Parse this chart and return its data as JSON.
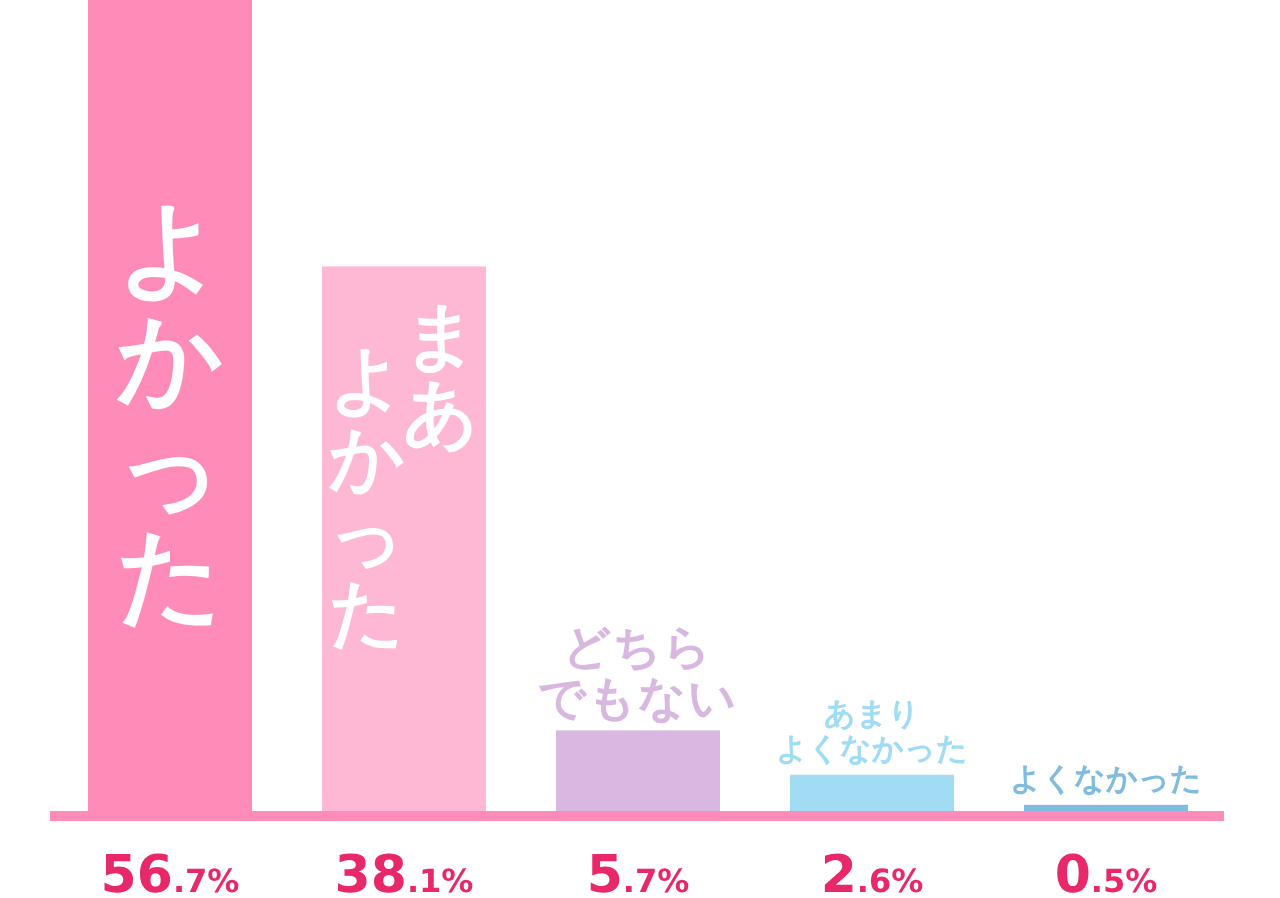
{
  "chart_data": {
    "type": "bar",
    "categories": [
      "よかった",
      "まあよかった",
      "どちらでもない",
      "あまりよくなかった",
      "よくなかった"
    ],
    "values": [
      56.7,
      38.1,
      5.7,
      2.6,
      0.5
    ],
    "colors": [
      "#ff8cb8",
      "#ffb8d4",
      "#d8b8e0",
      "#a0dcf4",
      "#80bce0"
    ],
    "value_labels": [
      "56.7%",
      "38.1%",
      "5.7%",
      "2.6%",
      "0.5%"
    ]
  }
}
